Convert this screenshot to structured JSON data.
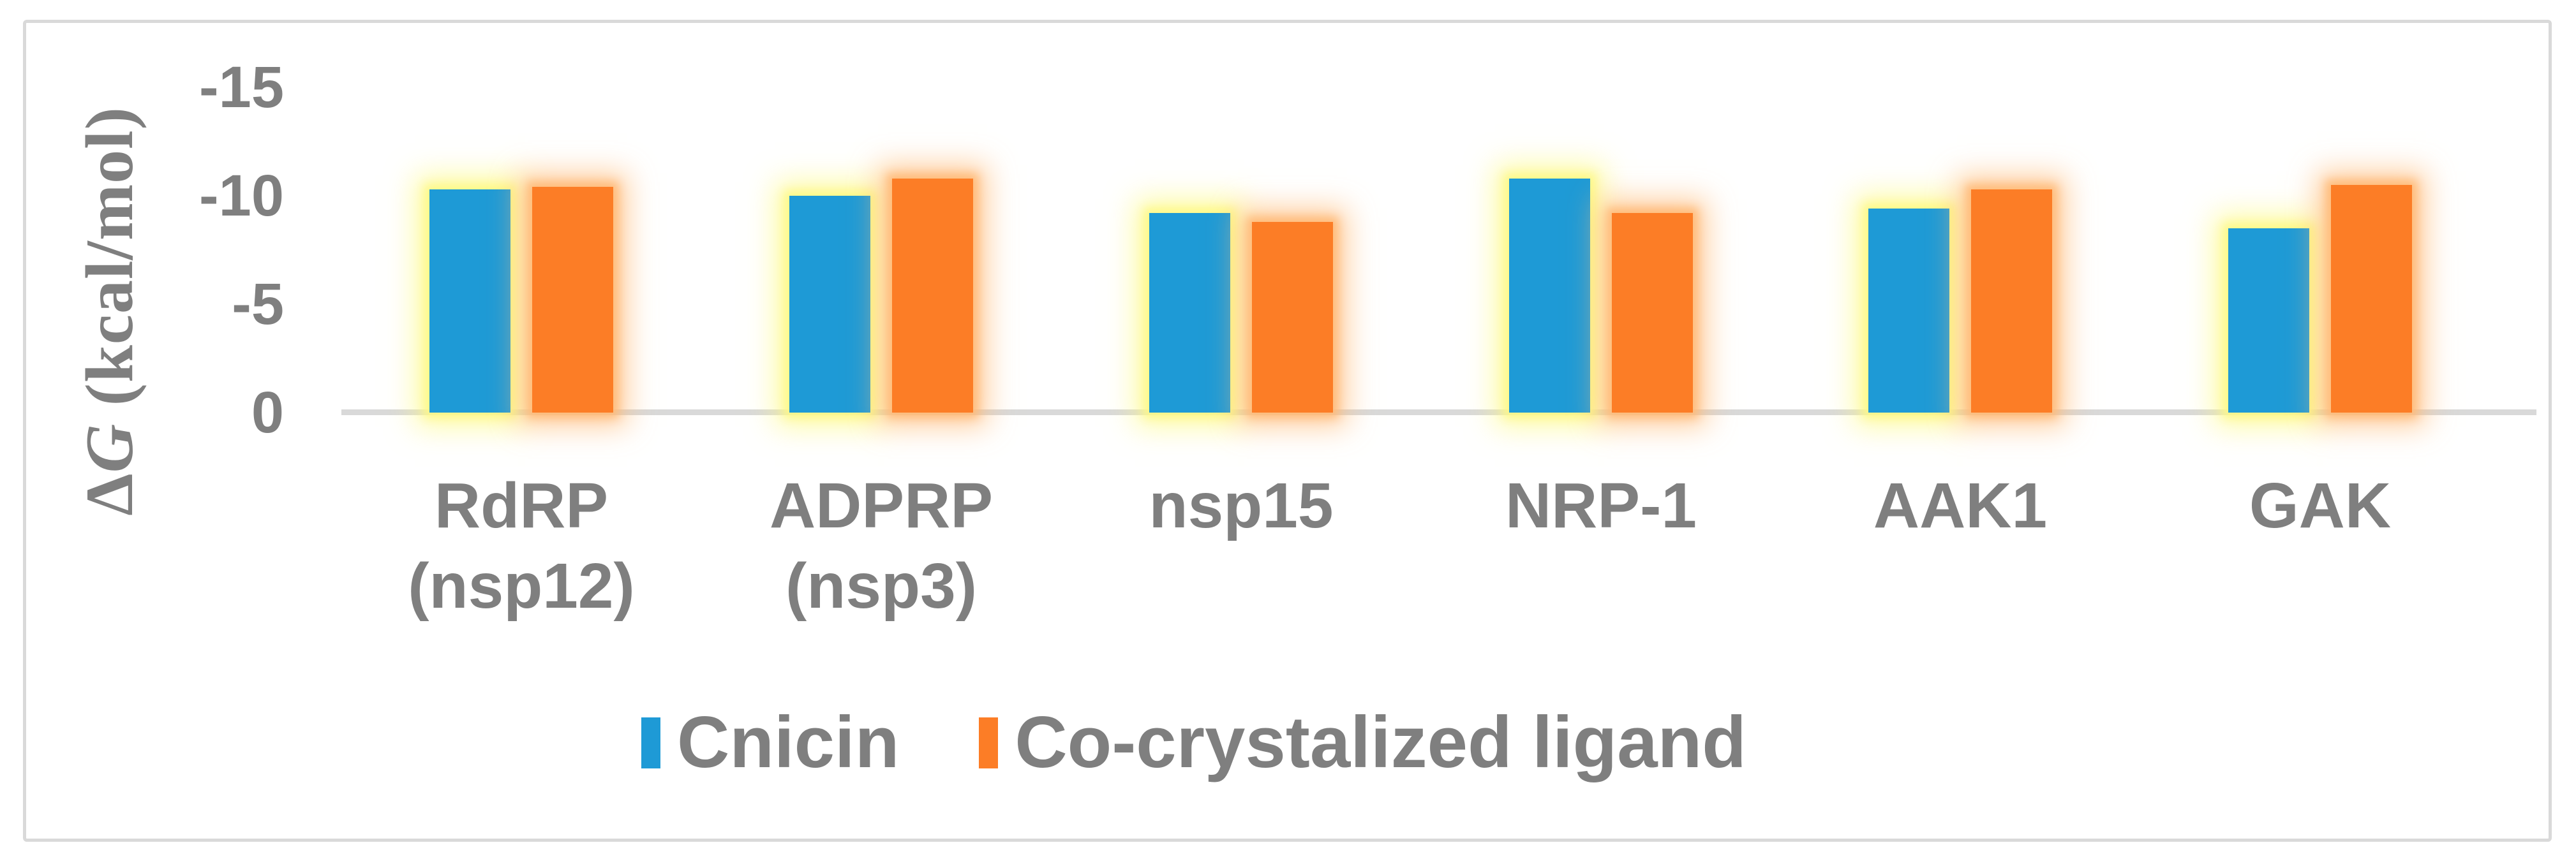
{
  "figure": {
    "background_color": "#FFFFFF",
    "frame_color": "#D9D9D9",
    "text_color": "#7F7F7F"
  },
  "axis": {
    "title_delta": "Δ",
    "title_g": "G",
    "title_units": " (kcal/mol)",
    "tick_labels": [
      "-15",
      "-10",
      "-5",
      "0"
    ],
    "line_color": "#D9D9D9"
  },
  "chart_data": {
    "type": "bar",
    "title": "",
    "xlabel": "",
    "ylabel": "ΔG (kcal/mol)",
    "y_axis_reversed": true,
    "ylim": [
      0,
      -15
    ],
    "yticks": [
      0,
      -5,
      -10,
      -15
    ],
    "grid": false,
    "legend_position": "bottom-center",
    "categories": [
      "RdRP (nsp12)",
      "ADPRP (nsp3)",
      "nsp15",
      "NRP-1",
      "AAK1",
      "GAK"
    ],
    "category_lines": [
      [
        "RdRP",
        "(nsp12)"
      ],
      [
        "ADPRP",
        "(nsp3)"
      ],
      [
        "nsp15"
      ],
      [
        "NRP-1"
      ],
      [
        "AAK1"
      ],
      [
        "GAK"
      ]
    ],
    "series": [
      {
        "name": "Cnicin",
        "color": "#1E9AD6",
        "glow_color": "#FDF987",
        "values": [
          -10.3,
          -10.0,
          -9.2,
          -10.8,
          -9.4,
          -8.5
        ]
      },
      {
        "name": "Co-crystalized ligand",
        "color": "#FC7D26",
        "glow_color": "#FFBA78",
        "values": [
          -10.4,
          -10.8,
          -8.8,
          -9.2,
          -10.3,
          -10.5
        ]
      }
    ]
  }
}
